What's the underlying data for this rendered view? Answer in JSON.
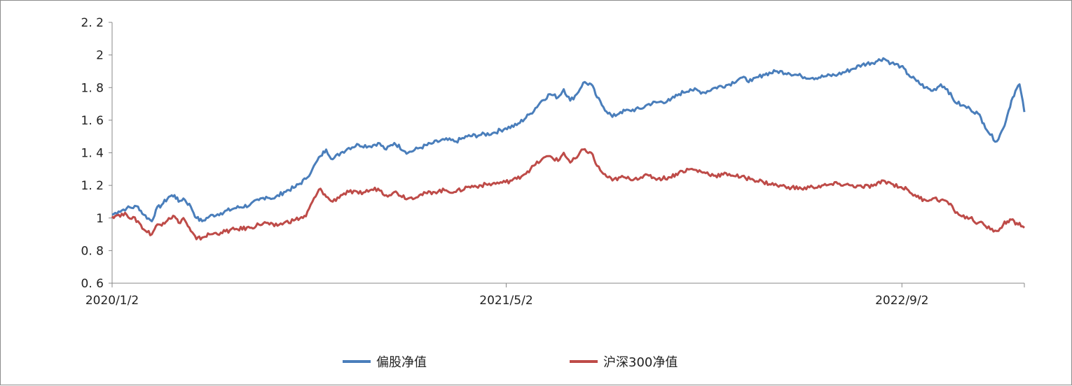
{
  "chart_data": {
    "type": "line",
    "title": "",
    "xlabel": "",
    "ylabel": "",
    "x_range": [
      "2020/1/2",
      "2023/1/31"
    ],
    "x_tick_labels": [
      "2020/1/2",
      "2021/5/2",
      "2022/9/2"
    ],
    "x_tick_dates": [
      "2020-01-02",
      "2021-05-02",
      "2022-09-02"
    ],
    "ylim": [
      0.6,
      2.2
    ],
    "y_ticks": [
      0.6,
      0.8,
      1.0,
      1.2,
      1.4,
      1.6,
      1.8,
      2.0,
      2.2
    ],
    "y_tick_labels": [
      "0. 6",
      "0. 8",
      "1",
      "1. 2",
      "1. 4",
      "1. 6",
      "1. 8",
      "2",
      "2. 2"
    ],
    "grid": false,
    "legend_position": "bottom",
    "series": [
      {
        "name": "偏股净值",
        "color": "#4a7ebb",
        "points": [
          [
            "2020-01-02",
            1.02
          ],
          [
            "2020-01-10",
            1.04
          ],
          [
            "2020-01-20",
            1.06
          ],
          [
            "2020-02-03",
            1.07
          ],
          [
            "2020-02-10",
            1.02
          ],
          [
            "2020-02-20",
            0.98
          ],
          [
            "2020-02-25",
            1.05
          ],
          [
            "2020-03-05",
            1.09
          ],
          [
            "2020-03-12",
            1.13
          ],
          [
            "2020-03-19",
            1.14
          ],
          [
            "2020-03-24",
            1.1
          ],
          [
            "2020-03-30",
            1.12
          ],
          [
            "2020-04-08",
            1.07
          ],
          [
            "2020-04-15",
            1.0
          ],
          [
            "2020-04-22",
            0.98
          ],
          [
            "2020-05-01",
            1.01
          ],
          [
            "2020-05-15",
            1.03
          ],
          [
            "2020-06-01",
            1.06
          ],
          [
            "2020-06-20",
            1.08
          ],
          [
            "2020-07-01",
            1.11
          ],
          [
            "2020-07-10",
            1.13
          ],
          [
            "2020-07-20",
            1.12
          ],
          [
            "2020-08-01",
            1.16
          ],
          [
            "2020-08-15",
            1.19
          ],
          [
            "2020-08-28",
            1.24
          ],
          [
            "2020-09-05",
            1.3
          ],
          [
            "2020-09-15",
            1.38
          ],
          [
            "2020-09-22",
            1.42
          ],
          [
            "2020-09-30",
            1.36
          ],
          [
            "2020-10-10",
            1.4
          ],
          [
            "2020-10-20",
            1.43
          ],
          [
            "2020-11-01",
            1.45
          ],
          [
            "2020-11-15",
            1.44
          ],
          [
            "2020-11-25",
            1.46
          ],
          [
            "2020-12-05",
            1.42
          ],
          [
            "2020-12-15",
            1.46
          ],
          [
            "2021-01-01",
            1.4
          ],
          [
            "2021-01-15",
            1.43
          ],
          [
            "2021-02-01",
            1.46
          ],
          [
            "2021-02-15",
            1.48
          ],
          [
            "2021-03-01",
            1.47
          ],
          [
            "2021-03-15",
            1.5
          ],
          [
            "2021-04-01",
            1.51
          ],
          [
            "2021-04-15",
            1.52
          ],
          [
            "2021-05-01",
            1.55
          ],
          [
            "2021-05-15",
            1.57
          ],
          [
            "2021-06-01",
            1.64
          ],
          [
            "2021-06-15",
            1.72
          ],
          [
            "2021-06-25",
            1.76
          ],
          [
            "2021-07-05",
            1.74
          ],
          [
            "2021-07-12",
            1.79
          ],
          [
            "2021-07-20",
            1.72
          ],
          [
            "2021-07-28",
            1.76
          ],
          [
            "2021-08-05",
            1.83
          ],
          [
            "2021-08-15",
            1.82
          ],
          [
            "2021-08-22",
            1.74
          ],
          [
            "2021-08-30",
            1.68
          ],
          [
            "2021-09-10",
            1.62
          ],
          [
            "2021-09-20",
            1.65
          ],
          [
            "2021-10-01",
            1.66
          ],
          [
            "2021-10-15",
            1.67
          ],
          [
            "2021-10-25",
            1.7
          ],
          [
            "2021-11-05",
            1.71
          ],
          [
            "2021-11-20",
            1.72
          ],
          [
            "2021-12-01",
            1.76
          ],
          [
            "2021-12-15",
            1.79
          ],
          [
            "2022-01-01",
            1.77
          ],
          [
            "2022-01-15",
            1.8
          ],
          [
            "2022-02-01",
            1.82
          ],
          [
            "2022-02-15",
            1.86
          ],
          [
            "2022-03-01",
            1.84
          ],
          [
            "2022-03-15",
            1.88
          ],
          [
            "2022-04-01",
            1.9
          ],
          [
            "2022-04-15",
            1.89
          ],
          [
            "2022-05-01",
            1.87
          ],
          [
            "2022-05-15",
            1.86
          ],
          [
            "2022-06-01",
            1.87
          ],
          [
            "2022-06-15",
            1.88
          ],
          [
            "2022-07-01",
            1.91
          ],
          [
            "2022-07-15",
            1.94
          ],
          [
            "2022-08-01",
            1.96
          ],
          [
            "2022-08-10",
            1.98
          ],
          [
            "2022-08-20",
            1.95
          ],
          [
            "2022-09-01",
            1.93
          ],
          [
            "2022-09-10",
            1.88
          ],
          [
            "2022-09-20",
            1.84
          ],
          [
            "2022-10-01",
            1.8
          ],
          [
            "2022-10-10",
            1.78
          ],
          [
            "2022-10-20",
            1.82
          ],
          [
            "2022-10-28",
            1.79
          ],
          [
            "2022-11-05",
            1.72
          ],
          [
            "2022-11-15",
            1.69
          ],
          [
            "2022-11-25",
            1.67
          ],
          [
            "2022-12-05",
            1.64
          ],
          [
            "2022-12-12",
            1.58
          ],
          [
            "2022-12-20",
            1.51
          ],
          [
            "2022-12-28",
            1.47
          ],
          [
            "2023-01-05",
            1.55
          ],
          [
            "2023-01-10",
            1.63
          ],
          [
            "2023-01-15",
            1.72
          ],
          [
            "2023-01-20",
            1.78
          ],
          [
            "2023-01-25",
            1.82
          ],
          [
            "2023-01-31",
            1.65
          ]
        ]
      },
      {
        "name": "沪深300净值",
        "color": "#be4b48",
        "points": [
          [
            "2020-01-02",
            1.01
          ],
          [
            "2020-01-10",
            1.02
          ],
          [
            "2020-01-20",
            1.02
          ],
          [
            "2020-02-03",
            0.98
          ],
          [
            "2020-02-10",
            0.93
          ],
          [
            "2020-02-20",
            0.9
          ],
          [
            "2020-02-25",
            0.95
          ],
          [
            "2020-03-05",
            0.97
          ],
          [
            "2020-03-12",
            1.0
          ],
          [
            "2020-03-19",
            1.01
          ],
          [
            "2020-03-24",
            0.97
          ],
          [
            "2020-03-30",
            1.0
          ],
          [
            "2020-04-08",
            0.92
          ],
          [
            "2020-04-15",
            0.87
          ],
          [
            "2020-04-22",
            0.88
          ],
          [
            "2020-05-01",
            0.9
          ],
          [
            "2020-05-15",
            0.91
          ],
          [
            "2020-06-01",
            0.93
          ],
          [
            "2020-06-20",
            0.94
          ],
          [
            "2020-07-01",
            0.96
          ],
          [
            "2020-07-10",
            0.97
          ],
          [
            "2020-07-20",
            0.95
          ],
          [
            "2020-08-01",
            0.97
          ],
          [
            "2020-08-15",
            0.99
          ],
          [
            "2020-08-28",
            1.01
          ],
          [
            "2020-09-05",
            1.1
          ],
          [
            "2020-09-15",
            1.18
          ],
          [
            "2020-09-22",
            1.13
          ],
          [
            "2020-09-30",
            1.1
          ],
          [
            "2020-10-10",
            1.14
          ],
          [
            "2020-10-20",
            1.16
          ],
          [
            "2020-11-01",
            1.15
          ],
          [
            "2020-11-15",
            1.17
          ],
          [
            "2020-11-25",
            1.18
          ],
          [
            "2020-12-05",
            1.14
          ],
          [
            "2020-12-15",
            1.16
          ],
          [
            "2021-01-01",
            1.12
          ],
          [
            "2021-01-15",
            1.14
          ],
          [
            "2021-02-01",
            1.16
          ],
          [
            "2021-02-15",
            1.17
          ],
          [
            "2021-03-01",
            1.16
          ],
          [
            "2021-03-15",
            1.19
          ],
          [
            "2021-04-01",
            1.2
          ],
          [
            "2021-04-15",
            1.21
          ],
          [
            "2021-05-01",
            1.22
          ],
          [
            "2021-05-15",
            1.24
          ],
          [
            "2021-06-01",
            1.3
          ],
          [
            "2021-06-15",
            1.36
          ],
          [
            "2021-06-25",
            1.38
          ],
          [
            "2021-07-05",
            1.35
          ],
          [
            "2021-07-12",
            1.4
          ],
          [
            "2021-07-20",
            1.34
          ],
          [
            "2021-07-28",
            1.37
          ],
          [
            "2021-08-05",
            1.42
          ],
          [
            "2021-08-15",
            1.4
          ],
          [
            "2021-08-22",
            1.32
          ],
          [
            "2021-08-30",
            1.27
          ],
          [
            "2021-09-10",
            1.23
          ],
          [
            "2021-09-20",
            1.25
          ],
          [
            "2021-10-01",
            1.24
          ],
          [
            "2021-10-15",
            1.25
          ],
          [
            "2021-10-25",
            1.26
          ],
          [
            "2021-11-05",
            1.24
          ],
          [
            "2021-11-20",
            1.25
          ],
          [
            "2021-12-01",
            1.28
          ],
          [
            "2021-12-15",
            1.3
          ],
          [
            "2022-01-01",
            1.28
          ],
          [
            "2022-01-15",
            1.26
          ],
          [
            "2022-02-01",
            1.27
          ],
          [
            "2022-02-15",
            1.25
          ],
          [
            "2022-03-01",
            1.24
          ],
          [
            "2022-03-15",
            1.22
          ],
          [
            "2022-04-01",
            1.2
          ],
          [
            "2022-04-15",
            1.19
          ],
          [
            "2022-05-01",
            1.18
          ],
          [
            "2022-05-15",
            1.19
          ],
          [
            "2022-06-01",
            1.2
          ],
          [
            "2022-06-15",
            1.21
          ],
          [
            "2022-07-01",
            1.2
          ],
          [
            "2022-07-15",
            1.19
          ],
          [
            "2022-08-01",
            1.2
          ],
          [
            "2022-08-10",
            1.23
          ],
          [
            "2022-08-20",
            1.21
          ],
          [
            "2022-09-01",
            1.19
          ],
          [
            "2022-09-10",
            1.17
          ],
          [
            "2022-09-20",
            1.13
          ],
          [
            "2022-10-01",
            1.11
          ],
          [
            "2022-10-10",
            1.12
          ],
          [
            "2022-10-20",
            1.11
          ],
          [
            "2022-10-28",
            1.1
          ],
          [
            "2022-11-05",
            1.05
          ],
          [
            "2022-11-15",
            1.01
          ],
          [
            "2022-11-25",
            1.0
          ],
          [
            "2022-12-05",
            0.97
          ],
          [
            "2022-12-12",
            0.96
          ],
          [
            "2022-12-20",
            0.93
          ],
          [
            "2022-12-28",
            0.92
          ],
          [
            "2023-01-05",
            0.96
          ],
          [
            "2023-01-10",
            0.98
          ],
          [
            "2023-01-15",
            0.99
          ],
          [
            "2023-01-20",
            0.96
          ],
          [
            "2023-01-25",
            0.97
          ],
          [
            "2023-01-31",
            0.94
          ]
        ]
      }
    ]
  }
}
